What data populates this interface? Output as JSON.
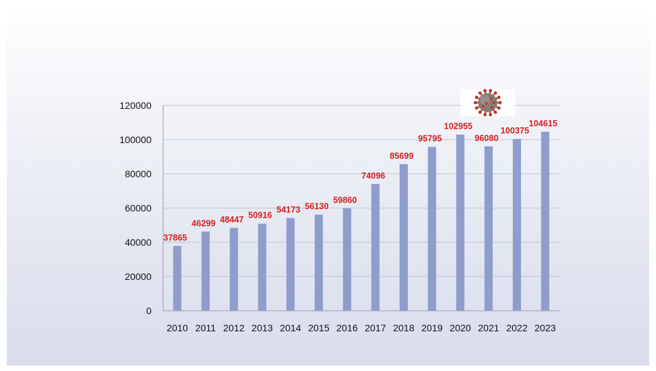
{
  "chart_data": {
    "type": "bar",
    "title": "",
    "xlabel": "",
    "ylabel": "",
    "categories": [
      "2010",
      "2011",
      "2012",
      "2013",
      "2014",
      "2015",
      "2016",
      "2017",
      "2018",
      "2019",
      "2020",
      "2021",
      "2022",
      "2023"
    ],
    "values": [
      37865,
      46299,
      48447,
      50916,
      54173,
      56130,
      59860,
      74096,
      85699,
      95795,
      102955,
      96080,
      100375,
      104615
    ],
    "data_labels": [
      "37865",
      "46299",
      "48447",
      "50916",
      "54173",
      "56130",
      "59860",
      "74096",
      "85699",
      "95795",
      "102955",
      "96080",
      "100375",
      "104615"
    ],
    "ylim": [
      0,
      120000
    ],
    "y_ticks": [
      0,
      20000,
      40000,
      60000,
      80000,
      100000,
      120000
    ],
    "y_tick_labels": [
      "0",
      "20000",
      "40000",
      "60000",
      "80000",
      "100000",
      "120000"
    ],
    "grid": true,
    "legend": "none",
    "colors": {
      "bar": "#8e9dcc",
      "data_label": "#d42020",
      "grid": "#bfc2cc"
    },
    "annotations": [
      {
        "type": "image",
        "icon": "coronavirus-icon",
        "near_category": "2020"
      }
    ]
  }
}
